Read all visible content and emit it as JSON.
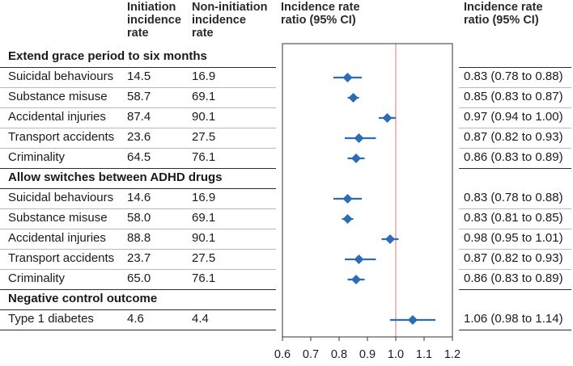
{
  "headers": {
    "initiation": [
      "Initiation",
      "incidence",
      "rate"
    ],
    "non_initiation": [
      "Non-initiation",
      "incidence",
      "rate"
    ],
    "irr_plot": [
      "Incidence rate",
      "ratio (95% CI)"
    ],
    "irr_text": [
      "Incidence rate",
      "ratio (95% CI)"
    ]
  },
  "sections": [
    {
      "title": "Extend grace period to six months",
      "rows": [
        {
          "label": "Suicidal behaviours",
          "init": "14.5",
          "noninit": "16.9",
          "ci_text": "0.83 (0.78 to 0.88)"
        },
        {
          "label": "Substance misuse",
          "init": "58.7",
          "noninit": "69.1",
          "ci_text": "0.85 (0.83 to 0.87)"
        },
        {
          "label": "Accidental injuries",
          "init": "87.4",
          "noninit": "90.1",
          "ci_text": "0.97 (0.94 to 1.00)"
        },
        {
          "label": "Transport accidents",
          "init": "23.6",
          "noninit": "27.5",
          "ci_text": "0.87 (0.82 to 0.93)"
        },
        {
          "label": "Criminality",
          "init": "64.5",
          "noninit": "76.1",
          "ci_text": "0.86 (0.83 to 0.89)"
        }
      ]
    },
    {
      "title": "Allow switches between ADHD drugs",
      "rows": [
        {
          "label": "Suicidal behaviours",
          "init": "14.6",
          "noninit": "16.9",
          "ci_text": "0.83 (0.78 to 0.88)"
        },
        {
          "label": "Substance misuse",
          "init": "58.0",
          "noninit": "69.1",
          "ci_text": "0.83 (0.81 to 0.85)"
        },
        {
          "label": "Accidental injuries",
          "init": "88.8",
          "noninit": "90.1",
          "ci_text": "0.98 (0.95 to 1.01)"
        },
        {
          "label": "Transport accidents",
          "init": "23.7",
          "noninit": "27.5",
          "ci_text": "0.87 (0.82 to 0.93)"
        },
        {
          "label": "Criminality",
          "init": "65.0",
          "noninit": "76.1",
          "ci_text": "0.86 (0.83 to 0.89)"
        }
      ]
    },
    {
      "title": "Negative control outcome",
      "rows": [
        {
          "label": "Type 1 diabetes",
          "init": "4.6",
          "noninit": "4.4",
          "ci_text": "1.06 (0.98 to 1.14)"
        }
      ]
    }
  ],
  "chart_data": {
    "type": "forest",
    "xlabel": "",
    "xlim": [
      0.6,
      1.2
    ],
    "xticks": [
      "0.6",
      "0.7",
      "0.8",
      "0.9",
      "1.0",
      "1.1",
      "1.2"
    ],
    "reference_line": 1.0,
    "colors": {
      "marker": "#2a6db5",
      "reference": "#e88a8a",
      "frame": "#333333"
    },
    "points": [
      {
        "section": "Extend grace period to six months",
        "outcome": "Suicidal behaviours",
        "estimate": 0.83,
        "lower": 0.78,
        "upper": 0.88
      },
      {
        "section": "Extend grace period to six months",
        "outcome": "Substance misuse",
        "estimate": 0.85,
        "lower": 0.83,
        "upper": 0.87
      },
      {
        "section": "Extend grace period to six months",
        "outcome": "Accidental injuries",
        "estimate": 0.97,
        "lower": 0.94,
        "upper": 1.0
      },
      {
        "section": "Extend grace period to six months",
        "outcome": "Transport accidents",
        "estimate": 0.87,
        "lower": 0.82,
        "upper": 0.93
      },
      {
        "section": "Extend grace period to six months",
        "outcome": "Criminality",
        "estimate": 0.86,
        "lower": 0.83,
        "upper": 0.89
      },
      {
        "section": "Allow switches between ADHD drugs",
        "outcome": "Suicidal behaviours",
        "estimate": 0.83,
        "lower": 0.78,
        "upper": 0.88
      },
      {
        "section": "Allow switches between ADHD drugs",
        "outcome": "Substance misuse",
        "estimate": 0.83,
        "lower": 0.81,
        "upper": 0.85
      },
      {
        "section": "Allow switches between ADHD drugs",
        "outcome": "Accidental injuries",
        "estimate": 0.98,
        "lower": 0.95,
        "upper": 1.01
      },
      {
        "section": "Allow switches between ADHD drugs",
        "outcome": "Transport accidents",
        "estimate": 0.87,
        "lower": 0.82,
        "upper": 0.93
      },
      {
        "section": "Allow switches between ADHD drugs",
        "outcome": "Criminality",
        "estimate": 0.86,
        "lower": 0.83,
        "upper": 0.89
      },
      {
        "section": "Negative control outcome",
        "outcome": "Type 1 diabetes",
        "estimate": 1.06,
        "lower": 0.98,
        "upper": 1.14
      }
    ]
  }
}
